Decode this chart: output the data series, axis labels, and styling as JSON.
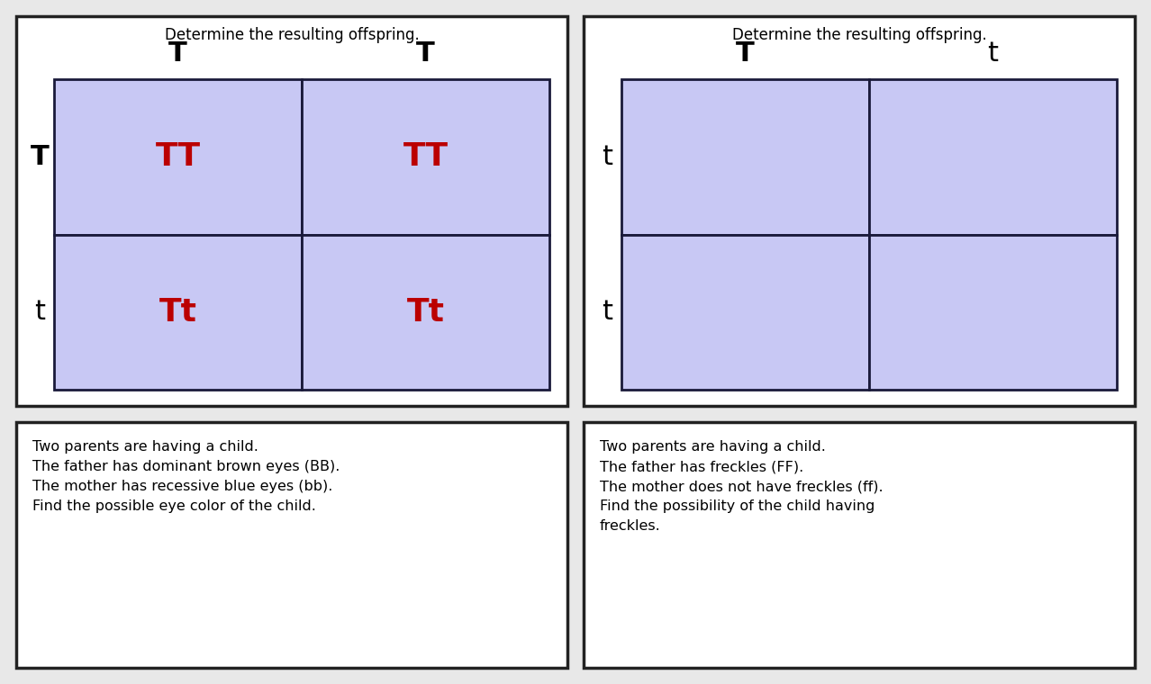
{
  "bg_color": "#e8e8e8",
  "panel_bg": "#ffffff",
  "cell_color": "#c8c8f4",
  "cell_border": "#1a1a3a",
  "panel_border": "#222222",
  "text_color": "#000000",
  "allele_text_color": "#bb0000",
  "punnett_panels": [
    {
      "title": "Determine the resulting offspring.",
      "col_labels": [
        "T",
        "T"
      ],
      "row_labels": [
        "T",
        "t"
      ],
      "cells": [
        [
          "TT",
          "TT"
        ],
        [
          "Tt",
          "Tt"
        ]
      ],
      "show_alleles": true,
      "col_label_bold": [
        true,
        true
      ],
      "row_label_bold": [
        true,
        false
      ]
    },
    {
      "title": "Determine the resulting offspring.",
      "col_labels": [
        "T",
        "t"
      ],
      "row_labels": [
        "t",
        "t"
      ],
      "cells": [
        [
          "",
          ""
        ],
        [
          "",
          ""
        ]
      ],
      "show_alleles": false,
      "col_label_bold": [
        true,
        false
      ],
      "row_label_bold": [
        false,
        false
      ]
    }
  ],
  "text_panels": [
    {
      "lines": [
        "Two parents are having a child.",
        "The father has dominant brown eyes (BB).",
        "The mother has recessive blue eyes (bb).",
        "Find the possible eye color of the child."
      ]
    },
    {
      "lines": [
        "Two parents are having a child.",
        "The father has freckles (FF).",
        "The mother does not have freckles (ff).",
        "Find the possibility of the child having",
        "freckles."
      ]
    }
  ],
  "fig_width": 12.78,
  "fig_height": 7.6,
  "dpi": 100
}
